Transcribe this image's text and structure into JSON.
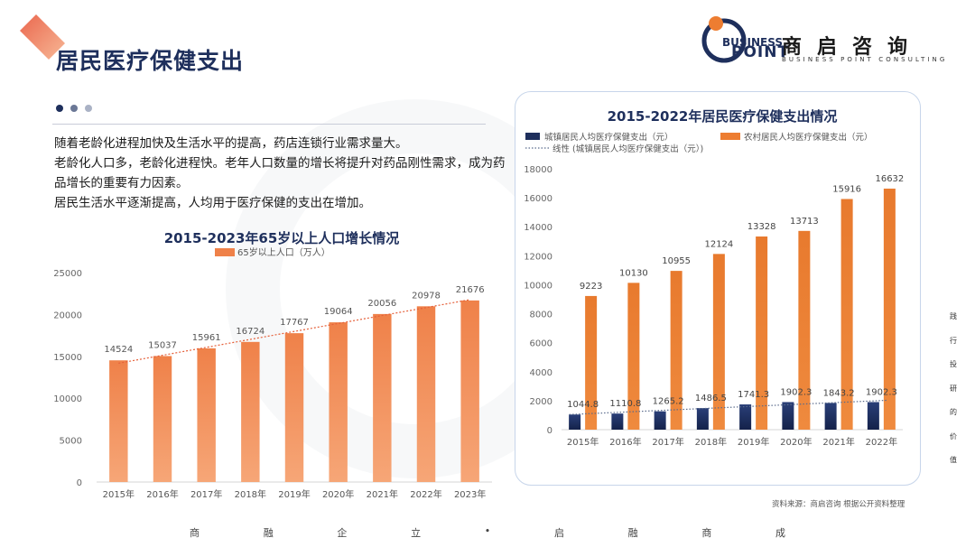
{
  "header": {
    "title": "居民医疗保健支出"
  },
  "logo": {
    "en_line1": "BUSINESS",
    "en_line2": "POINT",
    "cn": "商启咨询",
    "sub": "BUSINESS POINT CONSULTING"
  },
  "colors": {
    "navy": "#1e2f5c",
    "orange": "#ed7d31",
    "orange_light": "#f4a06d",
    "dot_gray": "#aab2c5",
    "dot_mid": "#6b7896"
  },
  "intro": {
    "lines": [
      "随着老龄化进程加快及生活水平的提高，药店连锁行业需求量大。",
      "老龄化人口多，老龄化进程快。老年人口数量的增长将提升对药品刚性需求，成为药品增长的重要有力因素。",
      "居民生活水平逐渐提高，人均用于医疗保健的支出在增加。"
    ]
  },
  "chart_data": [
    {
      "type": "bar",
      "title": "2015-2023年65岁以上人口增长情况",
      "categories": [
        "2015年",
        "2016年",
        "2017年",
        "2018年",
        "2019年",
        "2020年",
        "2021年",
        "2022年",
        "2023年"
      ],
      "series": [
        {
          "name": "65岁以上人口（万人）",
          "values": [
            14524,
            15037,
            15961,
            16724,
            17767,
            19064,
            20056,
            20978,
            21676
          ],
          "color": "#ed7d31"
        }
      ],
      "trendline": true,
      "ylim": [
        0,
        25000
      ],
      "yticks": [
        0,
        5000,
        10000,
        15000,
        20000,
        25000
      ],
      "grid": false,
      "legend": "top"
    },
    {
      "type": "bar",
      "title": "2015-2022年居民医疗保健支出情况",
      "categories": [
        "2015年",
        "2016年",
        "2017年",
        "2018年",
        "2019年",
        "2020年",
        "2021年",
        "2022年"
      ],
      "series": [
        {
          "name": "城镇居民人均医疗保健支出（元）",
          "values": [
            1044.8,
            1110.8,
            1265.2,
            1486.5,
            1741.3,
            1902.3,
            1843.2,
            1902.3
          ],
          "labels": [
            "1044.8",
            "1110.8",
            "1265.2",
            "1486.5",
            "1741.3",
            "1902.3",
            "1843.2",
            "1902.3"
          ],
          "color": "#1e2f5c"
        },
        {
          "name": "农村居民人均医疗保健支出（元）",
          "values": [
            9223,
            10130,
            10955,
            12124,
            13328,
            13713,
            15916,
            16632
          ],
          "labels": [
            "9223",
            "10130",
            "10955",
            "12124",
            "13328",
            "13713",
            "15916",
            "16632"
          ],
          "color": "#ed7d31"
        }
      ],
      "trendline_name": "线性 (城镇居民人均医疗保健支出（元）)",
      "ylim": [
        0,
        18000
      ],
      "yticks": [
        0,
        2000,
        4000,
        6000,
        8000,
        10000,
        12000,
        14000,
        16000,
        18000
      ],
      "grid": false,
      "legend": "top"
    }
  ],
  "source": "资料来源：商启咨询 根据公开资料整理",
  "footer": [
    "商",
    "融",
    "企",
    "立",
    "•",
    "启",
    "融",
    "商",
    "成"
  ],
  "side_text": [
    "践",
    "行",
    "投",
    "研",
    "的",
    "价",
    "值"
  ]
}
